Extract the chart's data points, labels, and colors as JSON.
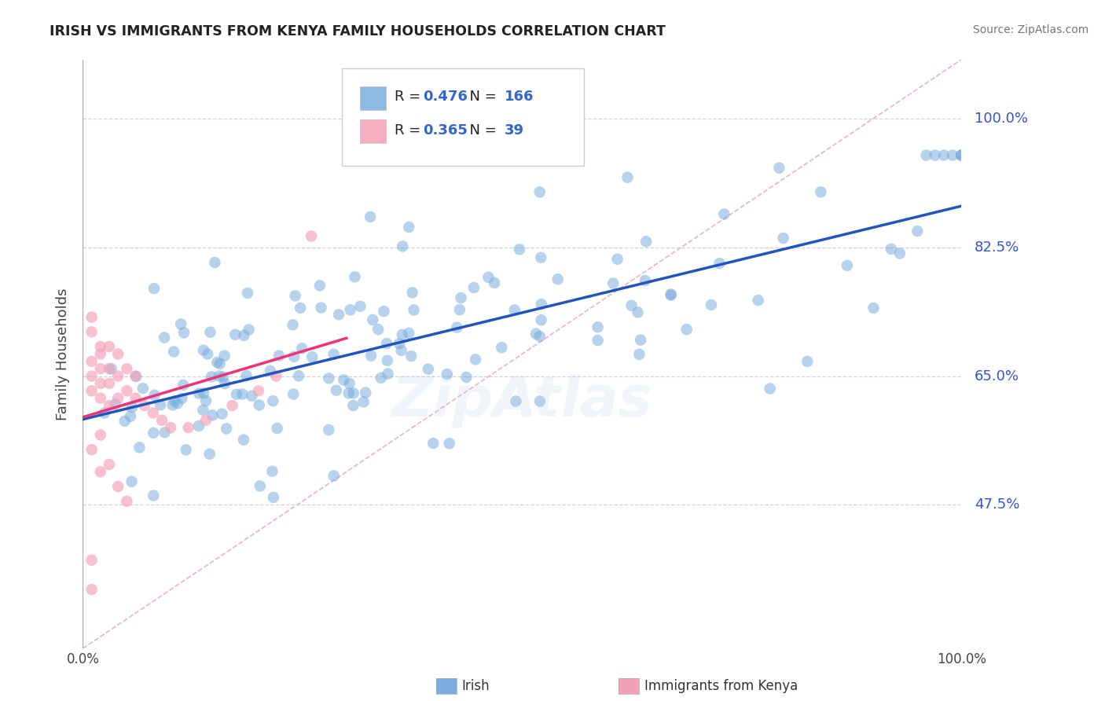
{
  "title": "IRISH VS IMMIGRANTS FROM KENYA FAMILY HOUSEHOLDS CORRELATION CHART",
  "source": "Source: ZipAtlas.com",
  "ylabel": "Family Households",
  "xlim": [
    0,
    1
  ],
  "ylim": [
    0.28,
    1.08
  ],
  "yticks": [
    0.475,
    0.65,
    0.825,
    1.0
  ],
  "ytick_labels": [
    "47.5%",
    "65.0%",
    "82.5%",
    "100.0%"
  ],
  "irish_color": "#7aadde",
  "kenya_color": "#f4a0b8",
  "trend_irish_color": "#2255bb",
  "trend_kenya_color": "#ee3377",
  "ref_line_color": "#e8a0b0",
  "grid_color": "#ccccdd",
  "R_irish": 0.476,
  "N_irish": 166,
  "R_kenya": 0.365,
  "N_kenya": 39,
  "watermark": "ZipAtlas",
  "watermark_color": "#aaccee",
  "irish_seed": 42,
  "kenya_seed": 99
}
